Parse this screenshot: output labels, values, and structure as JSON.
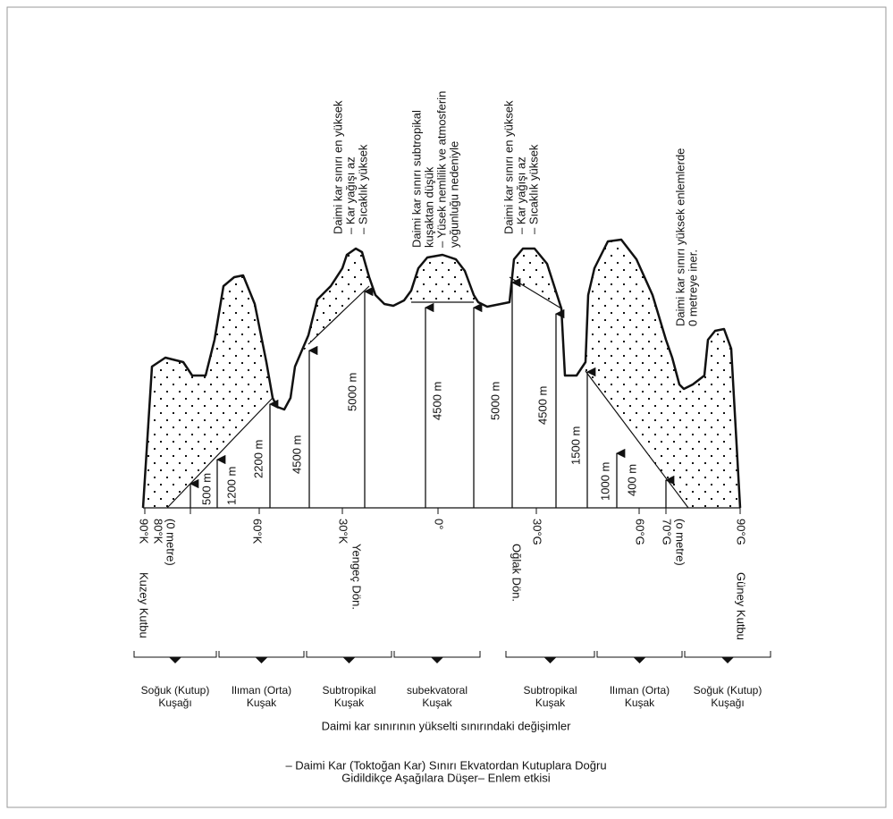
{
  "annotations": [
    [
      "Daimi kar sınırı en yüksek",
      "– Kar yağışı az",
      "– Sıcaklık yüksek"
    ],
    [
      "Daimi kar sınırı subtropikal",
      "kuşaktan düşük",
      "– Yüsek nemlilik ve atmosferin",
      "yoğunluğu nedeniyle"
    ],
    [
      "Daimi kar sınırı en yüksek",
      "– Kar yağışı az",
      "– Sıcaklık yüksek"
    ],
    [
      "Daimi kar sınırı yüksek enlemlerde",
      "0 metreye iner."
    ]
  ],
  "heights": [
    "500 m",
    "1200 m",
    "2200 m",
    "4500 m",
    "5000 m",
    "4500 m",
    "5000 m",
    "4500 m",
    "1500 m",
    "1000 m",
    "400 m"
  ],
  "latitudes": [
    "90°K",
    "80°K",
    "(0 metre)",
    "60°K",
    "30°K",
    "0°",
    "30°G",
    "60°G",
    "70°G",
    "(o metre)",
    "90°G"
  ],
  "places": [
    "Kuzey Kutbu",
    "Yengeç Dön.",
    "Oğlak Dön.",
    "Güney Kutbu"
  ],
  "zones": [
    [
      "Soğuk (Kutup)",
      "Kuşağı"
    ],
    [
      "Ilıman (Orta)",
      "Kuşak"
    ],
    [
      "Subtropikal",
      "Kuşak"
    ],
    [
      "subekvatoral",
      "Kuşak"
    ],
    [
      "Subtropikal",
      "Kuşak"
    ],
    [
      "Ilıman (Orta)",
      "Kuşak"
    ],
    [
      "Soğuk (Kutup)",
      "Kuşağı"
    ]
  ],
  "caption": "Daimi kar sınırının yükselti sınırındaki değişimler",
  "note": [
    "– Daimi Kar (Toktoğan Kar) Sınırı Ekvatordan Kutuplara Doğru",
    "Gidildikçe Aşağılara Düşer– Enlem etkisi"
  ]
}
